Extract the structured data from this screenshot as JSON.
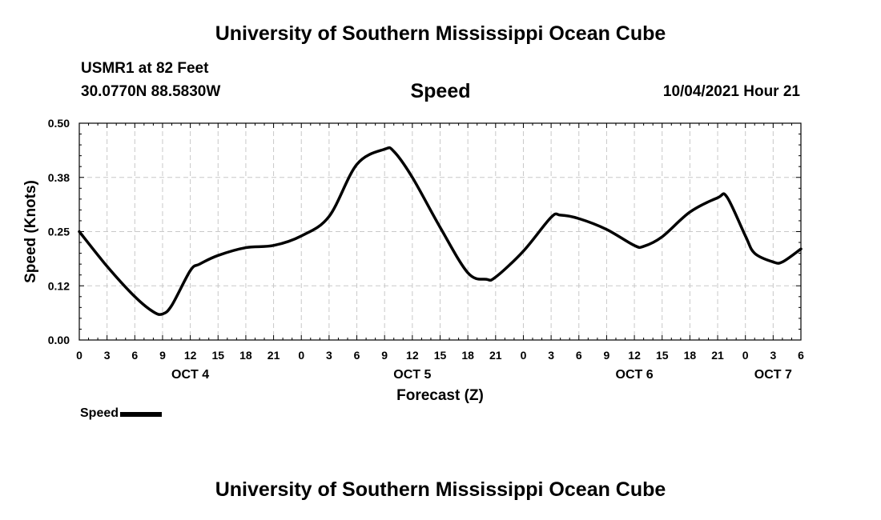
{
  "header": {
    "top_title": "University of Southern Mississippi Ocean Cube",
    "station": "USMR1 at 82 Feet",
    "coords": "30.0770N  88.5830W",
    "chart_title": "Speed",
    "date": "10/04/2021 Hour 21"
  },
  "footer": {
    "bottom_title": "University of Southern Mississippi Ocean Cube"
  },
  "legend": {
    "label": "Speed"
  },
  "chart_data": {
    "type": "line",
    "title": "Speed",
    "xlabel": "Forecast (Z)",
    "ylabel": "Speed (Knots)",
    "x_unit": "hours since OCT 4 00Z",
    "xlim": [
      0,
      78
    ],
    "ylim": [
      0,
      0.5
    ],
    "grid": true,
    "y_ticks": [
      {
        "value": 0.0,
        "label": "0.00"
      },
      {
        "value": 0.125,
        "label": "0.12"
      },
      {
        "value": 0.25,
        "label": "0.25"
      },
      {
        "value": 0.375,
        "label": "0.38"
      },
      {
        "value": 0.5,
        "label": "0.50"
      }
    ],
    "x_ticks": [
      {
        "value": 0,
        "label": "0"
      },
      {
        "value": 3,
        "label": "3"
      },
      {
        "value": 6,
        "label": "6"
      },
      {
        "value": 9,
        "label": "9"
      },
      {
        "value": 12,
        "label": "12"
      },
      {
        "value": 15,
        "label": "15"
      },
      {
        "value": 18,
        "label": "18"
      },
      {
        "value": 21,
        "label": "21"
      },
      {
        "value": 24,
        "label": "0"
      },
      {
        "value": 27,
        "label": "3"
      },
      {
        "value": 30,
        "label": "6"
      },
      {
        "value": 33,
        "label": "9"
      },
      {
        "value": 36,
        "label": "12"
      },
      {
        "value": 39,
        "label": "15"
      },
      {
        "value": 42,
        "label": "18"
      },
      {
        "value": 45,
        "label": "21"
      },
      {
        "value": 48,
        "label": "0"
      },
      {
        "value": 51,
        "label": "3"
      },
      {
        "value": 54,
        "label": "6"
      },
      {
        "value": 57,
        "label": "9"
      },
      {
        "value": 60,
        "label": "12"
      },
      {
        "value": 63,
        "label": "15"
      },
      {
        "value": 66,
        "label": "18"
      },
      {
        "value": 69,
        "label": "21"
      },
      {
        "value": 72,
        "label": "0"
      },
      {
        "value": 75,
        "label": "3"
      },
      {
        "value": 78,
        "label": "6"
      }
    ],
    "day_labels": [
      {
        "value": 12,
        "label": "OCT 4"
      },
      {
        "value": 36,
        "label": "OCT 5"
      },
      {
        "value": 60,
        "label": "OCT 6"
      },
      {
        "value": 75,
        "label": "OCT 7"
      }
    ],
    "series": [
      {
        "name": "Speed",
        "color": "#000000",
        "x": [
          0,
          3,
          6,
          8,
          9,
          10,
          12,
          13,
          15,
          18,
          21,
          24,
          27,
          30,
          33,
          34,
          36,
          39,
          42,
          44,
          45,
          48,
          51,
          52,
          54,
          57,
          60,
          61,
          63,
          66,
          69,
          70,
          72,
          73,
          75,
          76,
          78
        ],
        "y": [
          0.25,
          0.17,
          0.1,
          0.065,
          0.06,
          0.08,
          0.16,
          0.175,
          0.195,
          0.213,
          0.218,
          0.24,
          0.285,
          0.405,
          0.44,
          0.435,
          0.375,
          0.26,
          0.155,
          0.14,
          0.145,
          0.205,
          0.283,
          0.288,
          0.28,
          0.255,
          0.218,
          0.216,
          0.238,
          0.295,
          0.328,
          0.33,
          0.24,
          0.2,
          0.18,
          0.18,
          0.21
        ]
      }
    ]
  }
}
